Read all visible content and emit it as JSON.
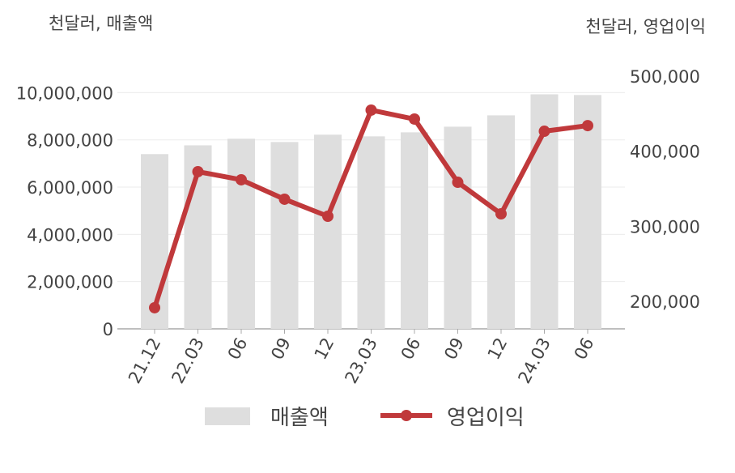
{
  "chart_data": {
    "type": "bar_line",
    "y_label": "천달러, 매출액",
    "y2_label": "천달러, 영업이익",
    "categories": [
      "21.12",
      "22.03",
      "06",
      "09",
      "12",
      "23.03",
      "06",
      "09",
      "12",
      "24.03",
      "06"
    ],
    "series": [
      {
        "name": "매출액",
        "type": "bar",
        "color": "#dedede",
        "values": [
          7400000,
          7770000,
          8050000,
          7910000,
          8220000,
          8150000,
          8320000,
          8560000,
          9040000,
          9930000,
          9900000
        ]
      },
      {
        "name": "영업이익",
        "type": "line",
        "axis": "y2",
        "color": "#c0393b",
        "values": [
          191400,
          372700,
          361900,
          336000,
          313300,
          454700,
          442800,
          358600,
          316500,
          426600,
          434100
        ]
      }
    ],
    "ylim": [
      0,
      10700000
    ],
    "yticks": [
      0,
      {
        "value": 2000000,
        "label": "2,000,000"
      },
      {
        "value": 4000000,
        "label": "4,000,000"
      },
      {
        "value": 6000000,
        "label": "6,000,000"
      },
      {
        "value": 8000000,
        "label": "8,000,000"
      },
      {
        "value": 10000000,
        "label": "10,000,000"
      }
    ],
    "y2lim": [
      163300,
      500000
    ],
    "y2ticks": [
      {
        "value": 200000,
        "label": "200,000"
      },
      {
        "value": 300000,
        "label": "300,000"
      },
      {
        "value": 400000,
        "label": "400,000"
      },
      {
        "value": 500000,
        "label": "500,000"
      }
    ],
    "grid": true
  }
}
